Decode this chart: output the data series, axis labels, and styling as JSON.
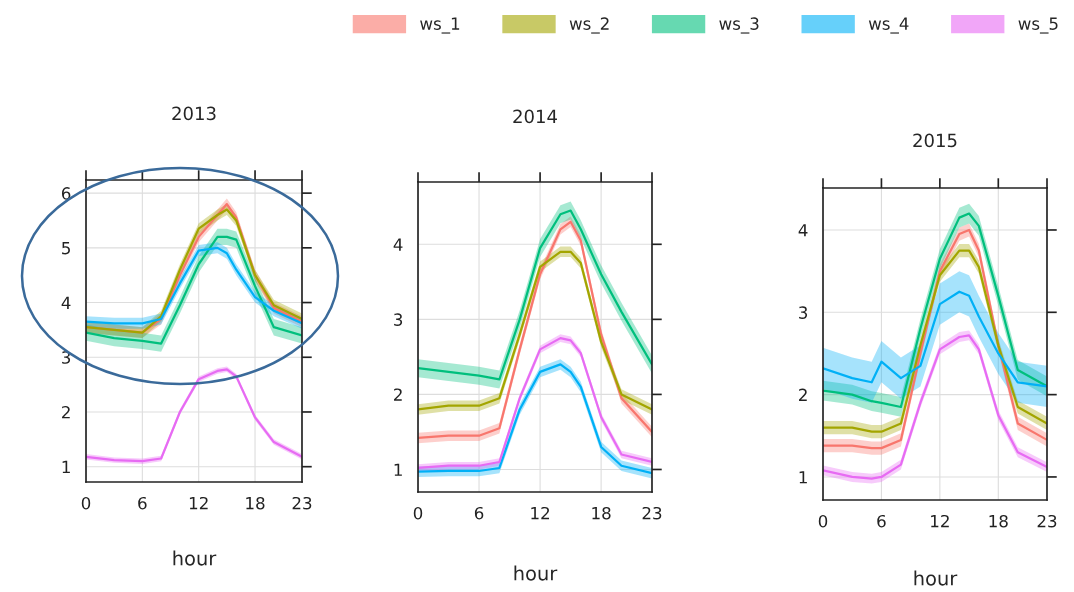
{
  "chart_data": [
    {
      "type": "line",
      "title": "2013",
      "xlabel": "hour",
      "x": [
        0,
        3,
        6,
        8,
        10,
        12,
        14,
        15,
        16,
        18,
        20,
        23
      ],
      "xlim": [
        0,
        23
      ],
      "xticks": [
        0,
        6,
        12,
        18,
        23
      ],
      "ylim": [
        0.72,
        6.24
      ],
      "yticks": [
        1,
        2,
        3,
        4,
        5,
        6
      ],
      "grid": true,
      "legend": "top",
      "series": [
        {
          "name": "ws_1",
          "color": "#f8766d",
          "values": [
            3.55,
            3.5,
            3.45,
            3.7,
            4.5,
            5.2,
            5.6,
            5.8,
            5.55,
            4.5,
            3.9,
            3.65
          ],
          "lower": [
            3.45,
            3.4,
            3.35,
            3.6,
            4.4,
            5.1,
            5.5,
            5.7,
            5.45,
            4.4,
            3.8,
            3.55
          ],
          "upper": [
            3.65,
            3.6,
            3.55,
            3.8,
            4.6,
            5.3,
            5.7,
            5.9,
            5.65,
            4.6,
            4.0,
            3.75
          ]
        },
        {
          "name": "ws_2",
          "color": "#a3a500",
          "values": [
            3.55,
            3.5,
            3.45,
            3.75,
            4.6,
            5.35,
            5.6,
            5.7,
            5.5,
            4.5,
            3.95,
            3.7
          ],
          "lower": [
            3.45,
            3.4,
            3.35,
            3.65,
            4.5,
            5.25,
            5.5,
            5.6,
            5.4,
            4.4,
            3.85,
            3.6
          ],
          "upper": [
            3.65,
            3.6,
            3.55,
            3.85,
            4.7,
            5.45,
            5.7,
            5.8,
            5.6,
            4.6,
            4.05,
            3.8
          ]
        },
        {
          "name": "ws_3",
          "color": "#00bf7d",
          "values": [
            3.45,
            3.35,
            3.3,
            3.25,
            3.95,
            4.7,
            5.2,
            5.2,
            5.15,
            4.3,
            3.55,
            3.4
          ],
          "lower": [
            3.3,
            3.2,
            3.15,
            3.1,
            3.8,
            4.55,
            5.05,
            5.05,
            5.0,
            4.15,
            3.4,
            3.25
          ],
          "upper": [
            3.6,
            3.5,
            3.45,
            3.4,
            4.1,
            4.85,
            5.35,
            5.35,
            5.3,
            4.45,
            3.7,
            3.55
          ]
        },
        {
          "name": "ws_4",
          "color": "#00b0f6",
          "values": [
            3.65,
            3.62,
            3.62,
            3.7,
            4.35,
            4.95,
            5.0,
            4.9,
            4.6,
            4.1,
            3.85,
            3.62
          ],
          "lower": [
            3.55,
            3.52,
            3.52,
            3.6,
            4.25,
            4.85,
            4.9,
            4.8,
            4.5,
            4.0,
            3.75,
            3.52
          ],
          "upper": [
            3.75,
            3.72,
            3.72,
            3.8,
            4.45,
            5.05,
            5.1,
            5.0,
            4.7,
            4.2,
            3.95,
            3.72
          ]
        },
        {
          "name": "ws_5",
          "color": "#e76bf3",
          "values": [
            1.18,
            1.12,
            1.1,
            1.15,
            2.0,
            2.6,
            2.75,
            2.78,
            2.65,
            1.9,
            1.45,
            1.18
          ],
          "lower": [
            1.13,
            1.07,
            1.05,
            1.1,
            1.95,
            2.55,
            2.7,
            2.73,
            2.6,
            1.85,
            1.4,
            1.13
          ],
          "upper": [
            1.23,
            1.17,
            1.15,
            1.2,
            2.05,
            2.65,
            2.8,
            2.83,
            2.7,
            1.95,
            1.5,
            1.23
          ]
        }
      ]
    },
    {
      "type": "line",
      "title": "2014",
      "xlabel": "hour",
      "x": [
        0,
        3,
        6,
        8,
        10,
        12,
        14,
        15,
        16,
        18,
        20,
        23
      ],
      "xlim": [
        0,
        23
      ],
      "xticks": [
        0,
        6,
        12,
        18,
        23
      ],
      "ylim": [
        0.7,
        4.83
      ],
      "yticks": [
        1,
        2,
        3,
        4
      ],
      "grid": true,
      "series": [
        {
          "name": "ws_1",
          "color": "#f8766d",
          "values": [
            1.42,
            1.45,
            1.45,
            1.55,
            2.6,
            3.6,
            4.2,
            4.3,
            4.05,
            2.8,
            1.95,
            1.5
          ],
          "lower": [
            1.35,
            1.38,
            1.38,
            1.48,
            2.53,
            3.53,
            4.13,
            4.23,
            3.98,
            2.73,
            1.88,
            1.43
          ],
          "upper": [
            1.49,
            1.52,
            1.52,
            1.62,
            2.67,
            3.67,
            4.27,
            4.37,
            4.12,
            2.87,
            2.02,
            1.57
          ]
        },
        {
          "name": "ws_2",
          "color": "#a3a500",
          "values": [
            1.8,
            1.85,
            1.85,
            1.95,
            2.8,
            3.7,
            3.9,
            3.9,
            3.75,
            2.7,
            2.0,
            1.8
          ],
          "lower": [
            1.73,
            1.78,
            1.78,
            1.88,
            2.73,
            3.63,
            3.83,
            3.83,
            3.68,
            2.63,
            1.93,
            1.73
          ],
          "upper": [
            1.87,
            1.92,
            1.92,
            2.02,
            2.87,
            3.77,
            3.97,
            3.97,
            3.82,
            2.77,
            2.07,
            1.87
          ]
        },
        {
          "name": "ws_3",
          "color": "#00bf7d",
          "values": [
            2.35,
            2.3,
            2.25,
            2.2,
            3.0,
            3.95,
            4.4,
            4.45,
            4.2,
            3.6,
            3.1,
            2.4
          ],
          "lower": [
            2.23,
            2.18,
            2.13,
            2.08,
            2.88,
            3.83,
            4.28,
            4.33,
            4.08,
            3.48,
            2.98,
            2.28
          ],
          "upper": [
            2.47,
            2.42,
            2.37,
            2.32,
            3.12,
            4.07,
            4.52,
            4.57,
            4.32,
            3.72,
            3.22,
            2.52
          ]
        },
        {
          "name": "ws_4",
          "color": "#00b0f6",
          "values": [
            0.97,
            0.98,
            0.98,
            1.02,
            1.8,
            2.3,
            2.4,
            2.3,
            2.1,
            1.3,
            1.05,
            0.95
          ],
          "lower": [
            0.9,
            0.91,
            0.91,
            0.95,
            1.73,
            2.23,
            2.33,
            2.23,
            2.03,
            1.23,
            0.98,
            0.88
          ],
          "upper": [
            1.04,
            1.05,
            1.05,
            1.09,
            1.87,
            2.37,
            2.47,
            2.37,
            2.17,
            1.37,
            1.12,
            1.02
          ]
        },
        {
          "name": "ws_5",
          "color": "#e76bf3",
          "values": [
            1.02,
            1.05,
            1.05,
            1.1,
            1.95,
            2.6,
            2.75,
            2.72,
            2.55,
            1.7,
            1.2,
            1.1
          ],
          "lower": [
            0.97,
            1.0,
            1.0,
            1.05,
            1.9,
            2.55,
            2.7,
            2.67,
            2.5,
            1.65,
            1.15,
            1.05
          ],
          "upper": [
            1.07,
            1.1,
            1.1,
            1.15,
            2.0,
            2.65,
            2.8,
            2.77,
            2.6,
            1.75,
            1.25,
            1.15
          ]
        }
      ]
    },
    {
      "type": "line",
      "title": "2015",
      "xlabel": "hour",
      "x": [
        0,
        3,
        5,
        6,
        8,
        10,
        12,
        14,
        15,
        16,
        18,
        20,
        23
      ],
      "xlim": [
        0,
        23
      ],
      "xticks": [
        0,
        6,
        12,
        18,
        23
      ],
      "ylim": [
        0.72,
        4.51
      ],
      "yticks": [
        1,
        2,
        3,
        4
      ],
      "grid": true,
      "series": [
        {
          "name": "ws_1",
          "color": "#f8766d",
          "values": [
            1.38,
            1.38,
            1.35,
            1.35,
            1.45,
            2.5,
            3.5,
            3.95,
            4.0,
            3.75,
            2.6,
            1.65,
            1.45
          ],
          "lower": [
            1.3,
            1.3,
            1.27,
            1.27,
            1.37,
            2.42,
            3.42,
            3.87,
            3.92,
            3.67,
            2.52,
            1.57,
            1.37
          ],
          "upper": [
            1.46,
            1.46,
            1.43,
            1.43,
            1.53,
            2.58,
            3.58,
            4.03,
            4.08,
            3.83,
            2.68,
            1.73,
            1.53
          ]
        },
        {
          "name": "ws_2",
          "color": "#a3a500",
          "values": [
            1.6,
            1.6,
            1.55,
            1.55,
            1.65,
            2.6,
            3.45,
            3.75,
            3.75,
            3.55,
            2.6,
            1.85,
            1.65
          ],
          "lower": [
            1.52,
            1.52,
            1.47,
            1.47,
            1.57,
            2.52,
            3.37,
            3.67,
            3.67,
            3.47,
            2.52,
            1.77,
            1.57
          ],
          "upper": [
            1.68,
            1.68,
            1.63,
            1.63,
            1.73,
            2.68,
            3.53,
            3.83,
            3.83,
            3.63,
            2.68,
            1.93,
            1.73
          ]
        },
        {
          "name": "ws_3",
          "color": "#00bf7d",
          "values": [
            2.05,
            2.0,
            1.92,
            1.9,
            1.85,
            2.8,
            3.65,
            4.15,
            4.2,
            4.05,
            3.2,
            2.3,
            2.1
          ],
          "lower": [
            1.93,
            1.88,
            1.8,
            1.78,
            1.73,
            2.68,
            3.53,
            4.03,
            4.08,
            3.93,
            3.08,
            2.18,
            1.98
          ],
          "upper": [
            2.17,
            2.12,
            2.04,
            2.02,
            1.97,
            2.92,
            3.77,
            4.27,
            4.32,
            4.17,
            3.32,
            2.42,
            2.22
          ]
        },
        {
          "name": "ws_4",
          "color": "#00b0f6",
          "values": [
            2.32,
            2.2,
            2.15,
            2.4,
            2.2,
            2.35,
            3.1,
            3.25,
            3.2,
            2.95,
            2.5,
            2.15,
            2.1
          ],
          "lower": [
            2.07,
            1.95,
            1.9,
            2.15,
            1.95,
            2.1,
            2.85,
            3.0,
            2.95,
            2.7,
            2.25,
            1.9,
            1.85
          ],
          "upper": [
            2.57,
            2.45,
            2.4,
            2.65,
            2.45,
            2.6,
            3.35,
            3.5,
            3.45,
            3.2,
            2.75,
            2.4,
            2.35
          ]
        },
        {
          "name": "ws_5",
          "color": "#e76bf3",
          "values": [
            1.08,
            1.0,
            0.98,
            1.0,
            1.15,
            1.9,
            2.55,
            2.7,
            2.72,
            2.55,
            1.75,
            1.3,
            1.12
          ],
          "lower": [
            1.02,
            0.94,
            0.92,
            0.94,
            1.09,
            1.84,
            2.49,
            2.64,
            2.66,
            2.49,
            1.69,
            1.24,
            1.06
          ],
          "upper": [
            1.14,
            1.06,
            1.04,
            1.06,
            1.21,
            1.96,
            2.61,
            2.76,
            2.78,
            2.61,
            1.81,
            1.36,
            1.18
          ]
        }
      ]
    }
  ]
}
